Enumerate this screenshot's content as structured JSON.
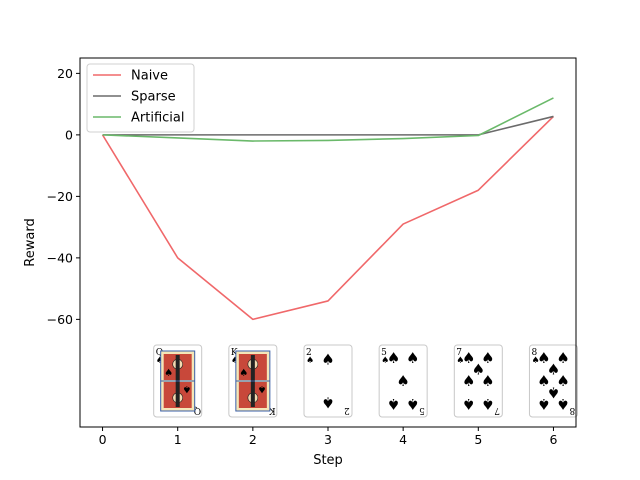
{
  "chart_data": {
    "type": "line",
    "title": "",
    "xlabel": "Step",
    "ylabel": "Reward",
    "x": [
      0,
      1,
      2,
      3,
      4,
      5,
      6
    ],
    "xlim": [
      -0.3,
      6.3
    ],
    "ylim": [
      -95,
      25
    ],
    "xticks": [
      0,
      1,
      2,
      3,
      4,
      5,
      6
    ],
    "yticks": [
      20,
      0,
      -20,
      -40,
      -60
    ],
    "ytick_labels": [
      "20",
      "0",
      "−20",
      "−40",
      "−60"
    ],
    "grid": false,
    "legend_position": "top-left",
    "series": [
      {
        "name": "Naive",
        "color": "#f0686a",
        "values": [
          0,
          -40,
          -60,
          -54,
          -29,
          -18,
          6
        ]
      },
      {
        "name": "Sparse",
        "color": "#6b6b6b",
        "values": [
          0,
          0,
          0,
          0,
          0,
          0,
          6
        ]
      },
      {
        "name": "Artificial",
        "color": "#6ab96a",
        "values": [
          0,
          -1,
          -2,
          -1.8,
          -1.2,
          -0.2,
          12
        ]
      }
    ],
    "cards": [
      {
        "step": 1,
        "rank": "Q",
        "suit": "♠",
        "face": true
      },
      {
        "step": 2,
        "rank": "K",
        "suit": "♠",
        "face": true
      },
      {
        "step": 3,
        "rank": "2",
        "suit": "♠",
        "face": false
      },
      {
        "step": 4,
        "rank": "5",
        "suit": "♠",
        "face": false
      },
      {
        "step": 5,
        "rank": "7",
        "suit": "♠",
        "face": false
      },
      {
        "step": 6,
        "rank": "8",
        "suit": "♠",
        "face": false
      }
    ]
  }
}
